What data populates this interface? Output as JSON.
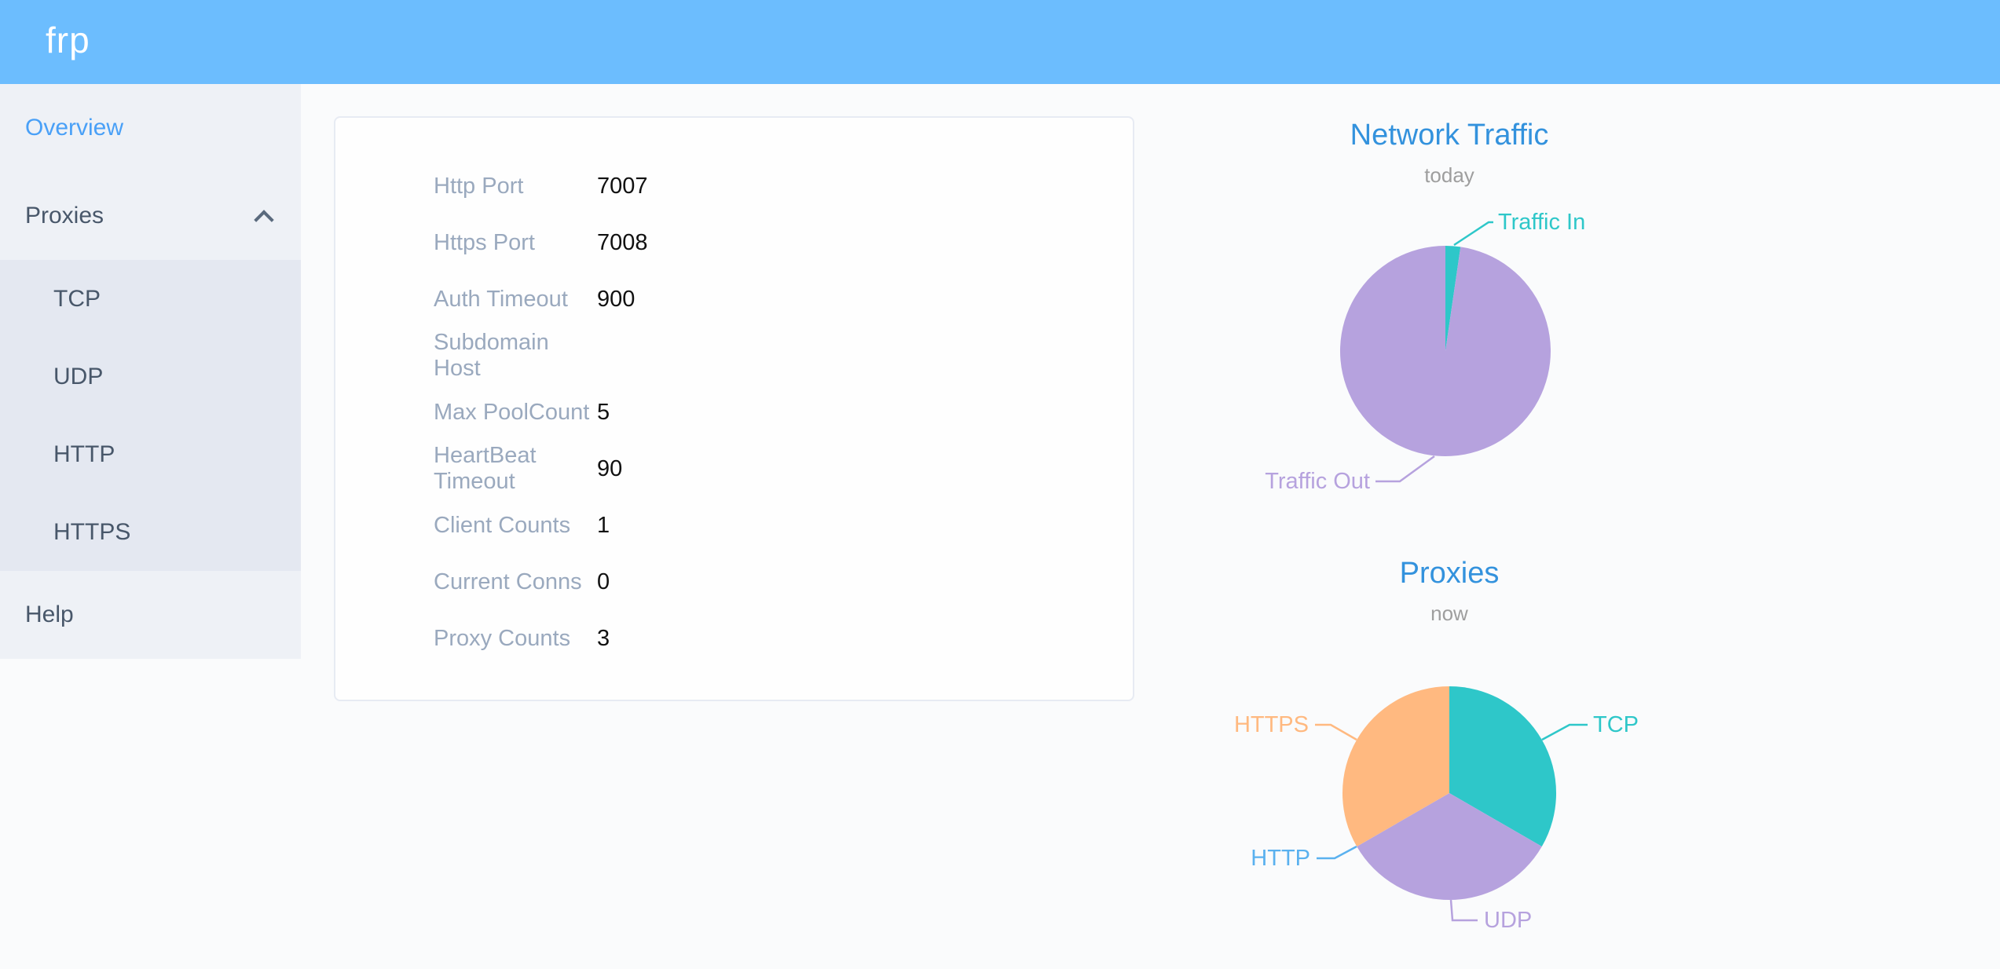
{
  "app": {
    "logo_text": "frp"
  },
  "colors": {
    "header_bg": "#6cbdfe",
    "sidebar_bg": "#eef1f6",
    "submenu_bg": "#e4e8f1",
    "menu_text": "#48576a",
    "menu_active": "#49a0f7",
    "chart_title": "#3392dd",
    "chart_subtitle": "#9e9e9e",
    "config_label": "#9aa9be",
    "config_value": "#111111",
    "teal": "#2ec7c9",
    "purple": "#b6a2de",
    "blue": "#5ab1ef",
    "orange": "#ffb980"
  },
  "icons": {
    "proxies_submenu_state": "chevron-up"
  },
  "sidebar": {
    "overview": "Overview",
    "proxies": "Proxies",
    "submenu": [
      "TCP",
      "UDP",
      "HTTP",
      "HTTPS"
    ],
    "help": "Help"
  },
  "overview_card": {
    "rows": [
      {
        "label": "Http Port",
        "value": "7007"
      },
      {
        "label": "Https Port",
        "value": "7008"
      },
      {
        "label": "Auth Timeout",
        "value": "900"
      },
      {
        "label": "Subdomain Host",
        "value": ""
      },
      {
        "label": "Max PoolCount",
        "value": "5"
      },
      {
        "label": "HeartBeat Timeout",
        "value": "90"
      },
      {
        "label": "Client Counts",
        "value": "1"
      },
      {
        "label": "Current Conns",
        "value": "0"
      },
      {
        "label": "Proxy Counts",
        "value": "3"
      }
    ]
  },
  "chart_data": [
    {
      "type": "pie",
      "title": "Network Traffic",
      "subtitle": "today",
      "label_style": "outside-callout",
      "unit": "percent_share",
      "series": [
        {
          "name": "Traffic In",
          "value": 2.3,
          "color": "#2ec7c9"
        },
        {
          "name": "Traffic Out",
          "value": 97.7,
          "color": "#b6a2de"
        }
      ]
    },
    {
      "type": "pie",
      "title": "Proxies",
      "subtitle": "now",
      "label_style": "outside-callout",
      "unit": "proxy_count",
      "series": [
        {
          "name": "TCP",
          "value": 1,
          "color": "#2ec7c9"
        },
        {
          "name": "UDP",
          "value": 1,
          "color": "#b6a2de"
        },
        {
          "name": "HTTP",
          "value": 0,
          "color": "#5ab1ef"
        },
        {
          "name": "HTTPS",
          "value": 1,
          "color": "#ffb980"
        }
      ]
    }
  ]
}
